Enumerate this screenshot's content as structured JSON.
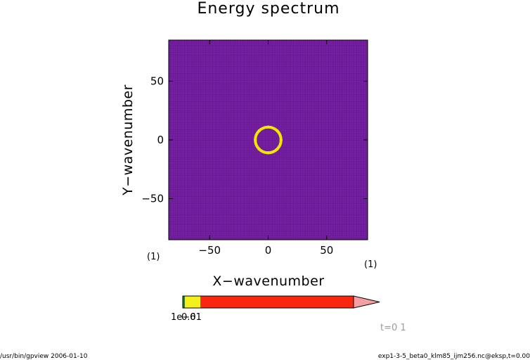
{
  "chart_data": {
    "type": "heatmap",
    "title": "Energy spectrum",
    "xlabel": "X−wavenumber",
    "ylabel": "Y−wavenumber",
    "xlim": [
      -85,
      85
    ],
    "ylim": [
      -85,
      85
    ],
    "xticks": [
      -50,
      0,
      50
    ],
    "yticks": [
      50,
      0,
      -50
    ],
    "x_unit": "(1)",
    "y_unit": "(1)",
    "background_color": "#7b22a6",
    "grid_color": "#4a0f7a",
    "ring": {
      "center": [
        0,
        0
      ],
      "radius": 11,
      "color": "#f2e600",
      "ticks_at_degrees": [
        0,
        45,
        90,
        135,
        180,
        225,
        270,
        315
      ]
    },
    "colorbar": {
      "segments": [
        {
          "from": "",
          "to": "1e-6",
          "color": "#2e7d1e"
        },
        {
          "from": "1e-6",
          "to": "0.01",
          "color": "#f5ef1b"
        },
        {
          "from": "0.01",
          "to": "",
          "color": "#ff2a12"
        }
      ],
      "overflow_color": "#f4a0a0",
      "tick_labels": [
        "1e-6",
        "0.01"
      ],
      "label_overlap_text": "1e−6",
      "label_over_text": "0.01"
    },
    "time_label": "t=0 1"
  },
  "footer": {
    "left": "/usr/bin/gpview  2006-01-10",
    "right": "exp1-3-5_beta0_klm85_ijm256.nc@eksp,t=0.00"
  }
}
